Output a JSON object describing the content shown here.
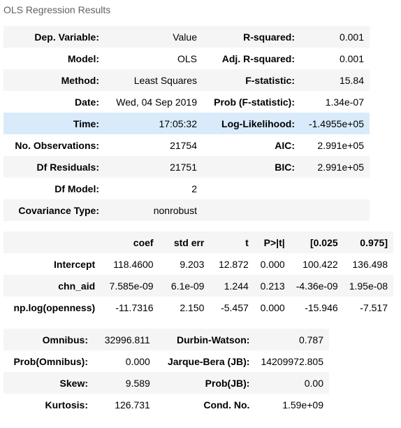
{
  "caption": "OLS Regression Results",
  "summary": [
    {
      "l1": "Dep. Variable:",
      "v1": "Value",
      "l2": "R-squared:",
      "v2": "0.001"
    },
    {
      "l1": "Model:",
      "v1": "OLS",
      "l2": "Adj. R-squared:",
      "v2": "0.001"
    },
    {
      "l1": "Method:",
      "v1": "Least Squares",
      "l2": "F-statistic:",
      "v2": "15.84"
    },
    {
      "l1": "Date:",
      "v1": "Wed, 04 Sep 2019",
      "l2": "Prob (F-statistic):",
      "v2": "1.34e-07"
    },
    {
      "l1": "Time:",
      "v1": "17:05:32",
      "l2": "Log-Likelihood:",
      "v2": "-1.4955e+05"
    },
    {
      "l1": "No. Observations:",
      "v1": "21754",
      "l2": "AIC:",
      "v2": "2.991e+05"
    },
    {
      "l1": "Df Residuals:",
      "v1": "21751",
      "l2": "BIC:",
      "v2": "2.991e+05"
    },
    {
      "l1": "Df Model:",
      "v1": "2",
      "l2": "",
      "v2": ""
    },
    {
      "l1": "Covariance Type:",
      "v1": "nonrobust",
      "l2": "",
      "v2": ""
    }
  ],
  "coef_headers": [
    "",
    "coef",
    "std err",
    "t",
    "P>|t|",
    "[0.025",
    "0.975]"
  ],
  "coef_rows": [
    {
      "name": "Intercept",
      "coef": "118.4600",
      "std_err": "9.203",
      "t": "12.872",
      "p": "0.000",
      "lo": "100.422",
      "hi": "136.498"
    },
    {
      "name": "chn_aid",
      "coef": "7.585e-09",
      "std_err": "6.1e-09",
      "t": "1.244",
      "p": "0.213",
      "lo": "-4.36e-09",
      "hi": "1.95e-08"
    },
    {
      "name": "np.log(openness)",
      "coef": "-11.7316",
      "std_err": "2.150",
      "t": "-5.457",
      "p": "0.000",
      "lo": "-15.946",
      "hi": "-7.517"
    }
  ],
  "diagnostics": [
    {
      "l1": "Omnibus:",
      "v1": "32996.811",
      "l2": "Durbin-Watson:",
      "v2": "0.787"
    },
    {
      "l1": "Prob(Omnibus):",
      "v1": "0.000",
      "l2": "Jarque-Bera (JB):",
      "v2": "14209972.805"
    },
    {
      "l1": "Skew:",
      "v1": "9.589",
      "l2": "Prob(JB):",
      "v2": "0.00"
    },
    {
      "l1": "Kurtosis:",
      "v1": "126.731",
      "l2": "Cond. No.",
      "v2": "1.59e+09"
    }
  ],
  "highlight_color": "#d9ebfa",
  "stripe_color": "#f5f5f5"
}
